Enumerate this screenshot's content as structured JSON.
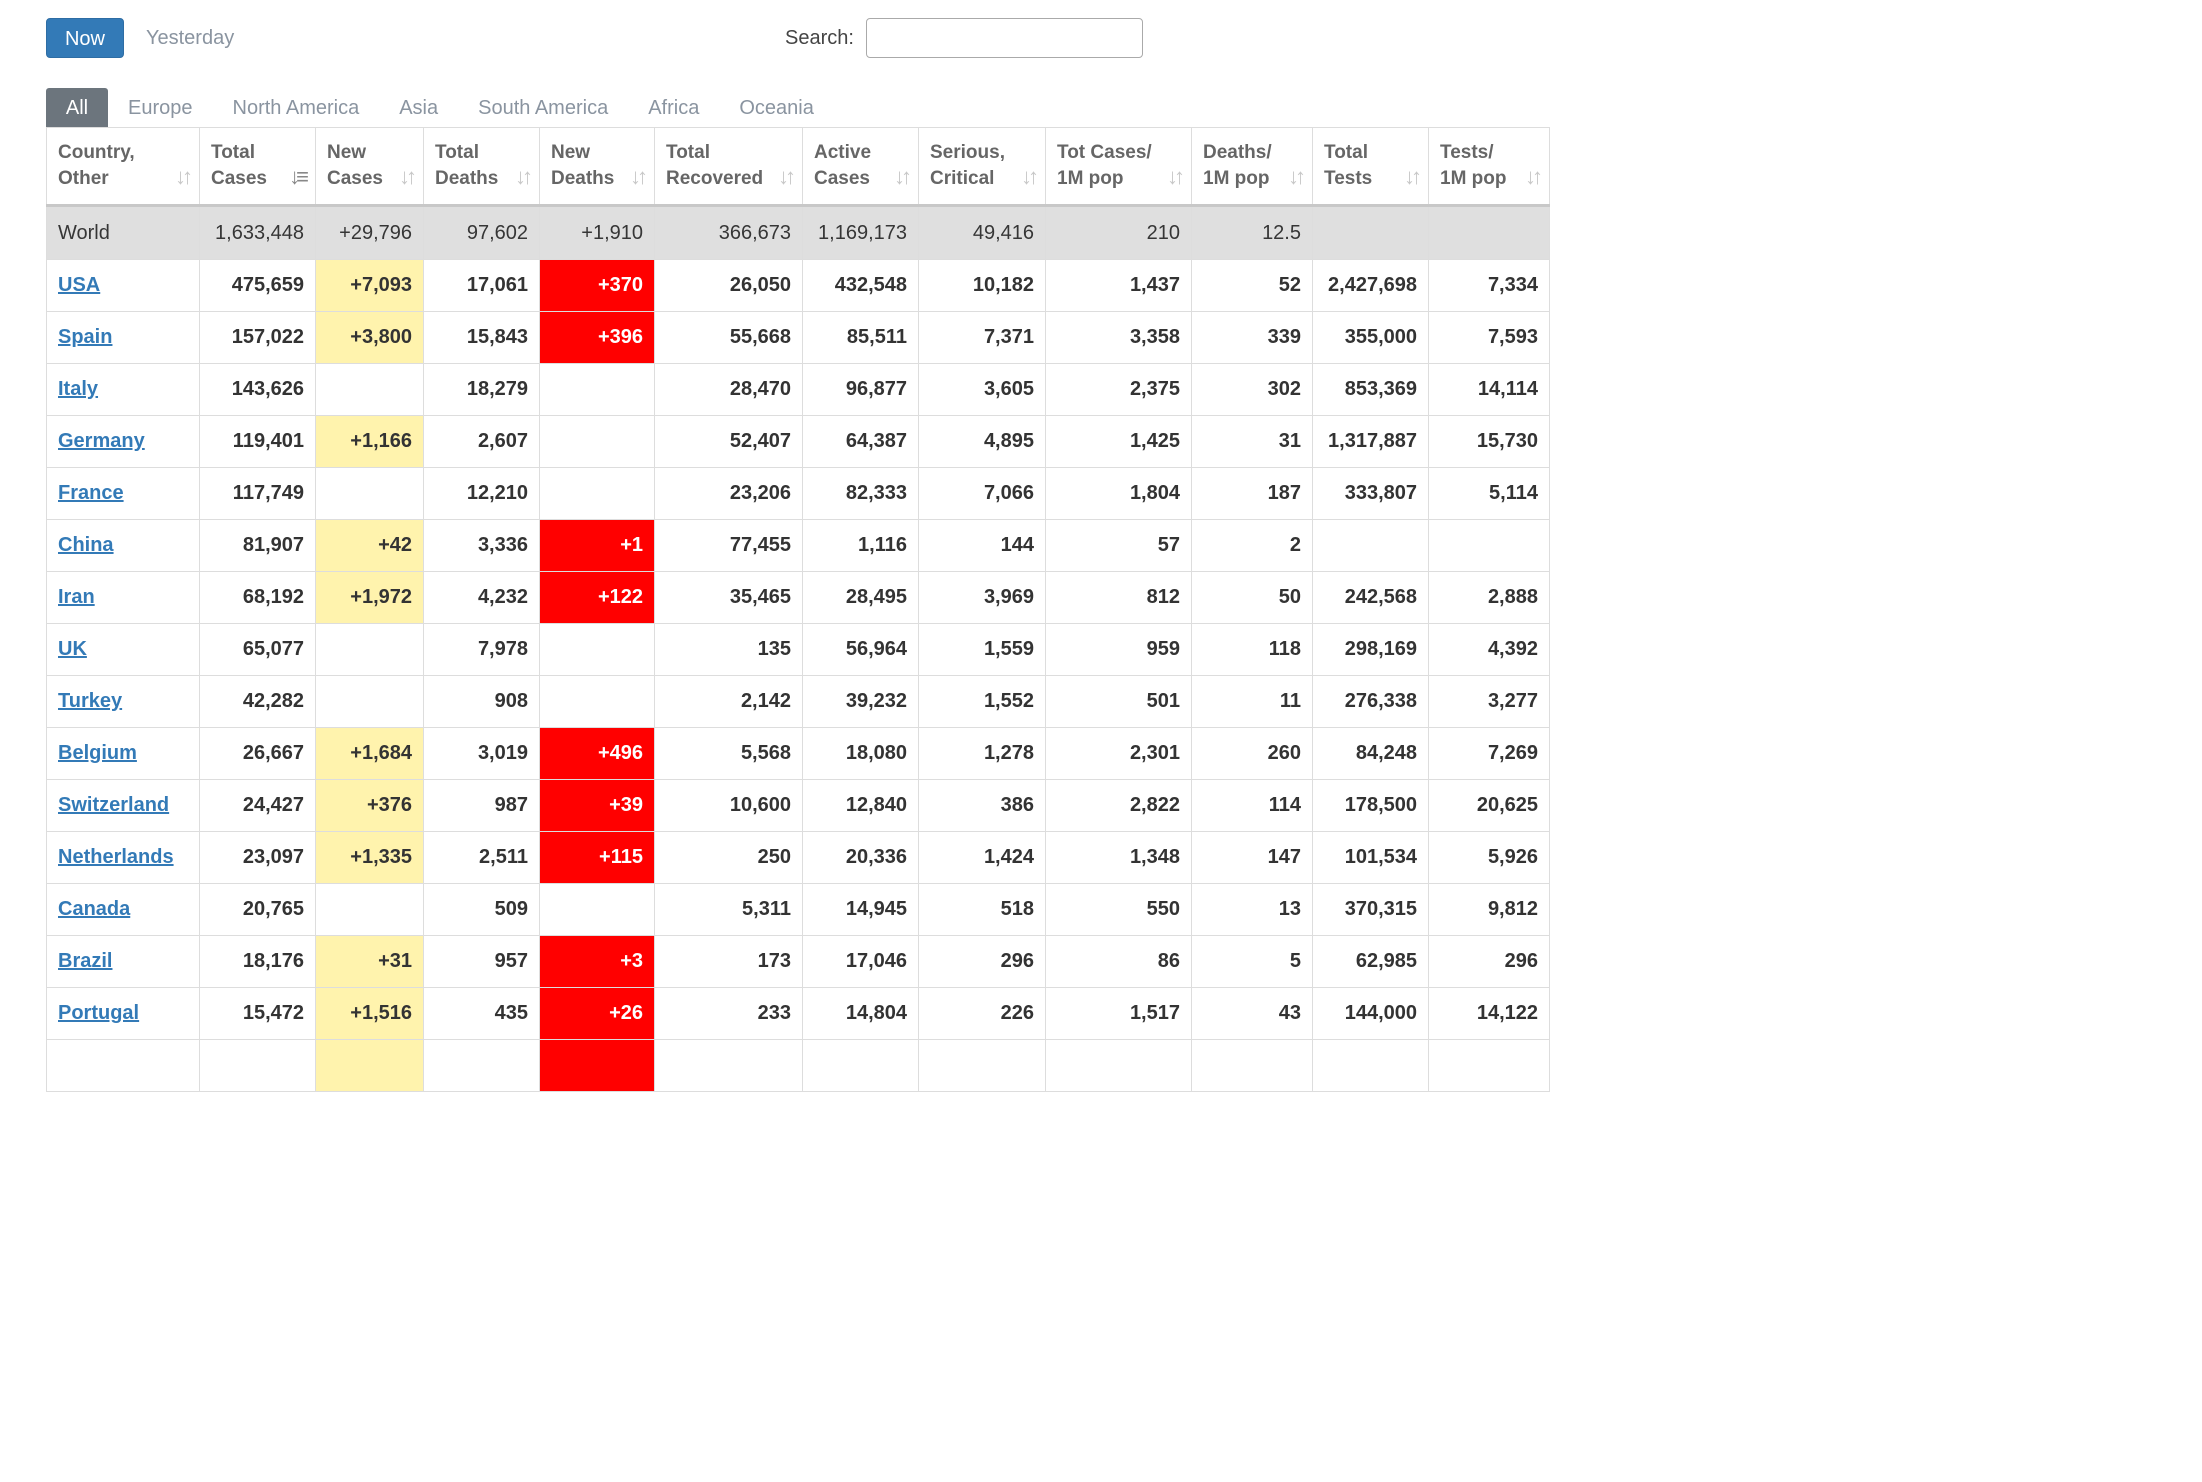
{
  "top_controls": {
    "now_label": "Now",
    "yesterday_label": "Yesterday",
    "search_label": "Search:",
    "search_value": "",
    "search_placeholder": ""
  },
  "tabs": [
    "All",
    "Europe",
    "North America",
    "Asia",
    "South America",
    "Africa",
    "Oceania"
  ],
  "active_tab": "All",
  "columns": [
    {
      "line1": "Country,",
      "line2": "Other"
    },
    {
      "line1": "Total",
      "line2": "Cases",
      "sorted": true
    },
    {
      "line1": "New",
      "line2": "Cases"
    },
    {
      "line1": "Total",
      "line2": "Deaths"
    },
    {
      "line1": "New",
      "line2": "Deaths"
    },
    {
      "line1": "Total",
      "line2": "Recovered"
    },
    {
      "line1": "Active",
      "line2": "Cases"
    },
    {
      "line1": "Serious,",
      "line2": "Critical"
    },
    {
      "line1": "Tot Cases/",
      "line2": "1M pop"
    },
    {
      "line1": "Deaths/",
      "line2": "1M pop"
    },
    {
      "line1": "Total",
      "line2": "Tests"
    },
    {
      "line1": "Tests/",
      "line2": "1M pop"
    }
  ],
  "world_row": [
    "World",
    "1,633,448",
    "+29,796",
    "97,602",
    "+1,910",
    "366,673",
    "1,169,173",
    "49,416",
    "210",
    "12.5",
    "",
    ""
  ],
  "rows": [
    [
      "USA",
      "475,659",
      "+7,093",
      "17,061",
      "+370",
      "26,050",
      "432,548",
      "10,182",
      "1,437",
      "52",
      "2,427,698",
      "7,334"
    ],
    [
      "Spain",
      "157,022",
      "+3,800",
      "15,843",
      "+396",
      "55,668",
      "85,511",
      "7,371",
      "3,358",
      "339",
      "355,000",
      "7,593"
    ],
    [
      "Italy",
      "143,626",
      "",
      "18,279",
      "",
      "28,470",
      "96,877",
      "3,605",
      "2,375",
      "302",
      "853,369",
      "14,114"
    ],
    [
      "Germany",
      "119,401",
      "+1,166",
      "2,607",
      "",
      "52,407",
      "64,387",
      "4,895",
      "1,425",
      "31",
      "1,317,887",
      "15,730"
    ],
    [
      "France",
      "117,749",
      "",
      "12,210",
      "",
      "23,206",
      "82,333",
      "7,066",
      "1,804",
      "187",
      "333,807",
      "5,114"
    ],
    [
      "China",
      "81,907",
      "+42",
      "3,336",
      "+1",
      "77,455",
      "1,116",
      "144",
      "57",
      "2",
      "",
      ""
    ],
    [
      "Iran",
      "68,192",
      "+1,972",
      "4,232",
      "+122",
      "35,465",
      "28,495",
      "3,969",
      "812",
      "50",
      "242,568",
      "2,888"
    ],
    [
      "UK",
      "65,077",
      "",
      "7,978",
      "",
      "135",
      "56,964",
      "1,559",
      "959",
      "118",
      "298,169",
      "4,392"
    ],
    [
      "Turkey",
      "42,282",
      "",
      "908",
      "",
      "2,142",
      "39,232",
      "1,552",
      "501",
      "11",
      "276,338",
      "3,277"
    ],
    [
      "Belgium",
      "26,667",
      "+1,684",
      "3,019",
      "+496",
      "5,568",
      "18,080",
      "1,278",
      "2,301",
      "260",
      "84,248",
      "7,269"
    ],
    [
      "Switzerland",
      "24,427",
      "+376",
      "987",
      "+39",
      "10,600",
      "12,840",
      "386",
      "2,822",
      "114",
      "178,500",
      "20,625"
    ],
    [
      "Netherlands",
      "23,097",
      "+1,335",
      "2,511",
      "+115",
      "250",
      "20,336",
      "1,424",
      "1,348",
      "147",
      "101,534",
      "5,926"
    ],
    [
      "Canada",
      "20,765",
      "",
      "509",
      "",
      "5,311",
      "14,945",
      "518",
      "550",
      "13",
      "370,315",
      "9,812"
    ],
    [
      "Brazil",
      "18,176",
      "+31",
      "957",
      "+3",
      "173",
      "17,046",
      "296",
      "86",
      "5",
      "62,985",
      "296"
    ],
    [
      "Portugal",
      "15,472",
      "+1,516",
      "435",
      "+26",
      "233",
      "14,804",
      "226",
      "1,517",
      "43",
      "144,000",
      "14,122"
    ],
    [
      "",
      "",
      "",
      "",
      "",
      "",
      "",
      "",
      "",
      "",
      "",
      ""
    ]
  ],
  "colors": {
    "primary": "#337ab7",
    "new_cases_highlight": "#fff3ad",
    "new_deaths_highlight": "#ff0000",
    "world_row_bg": "#dfdfdf"
  }
}
